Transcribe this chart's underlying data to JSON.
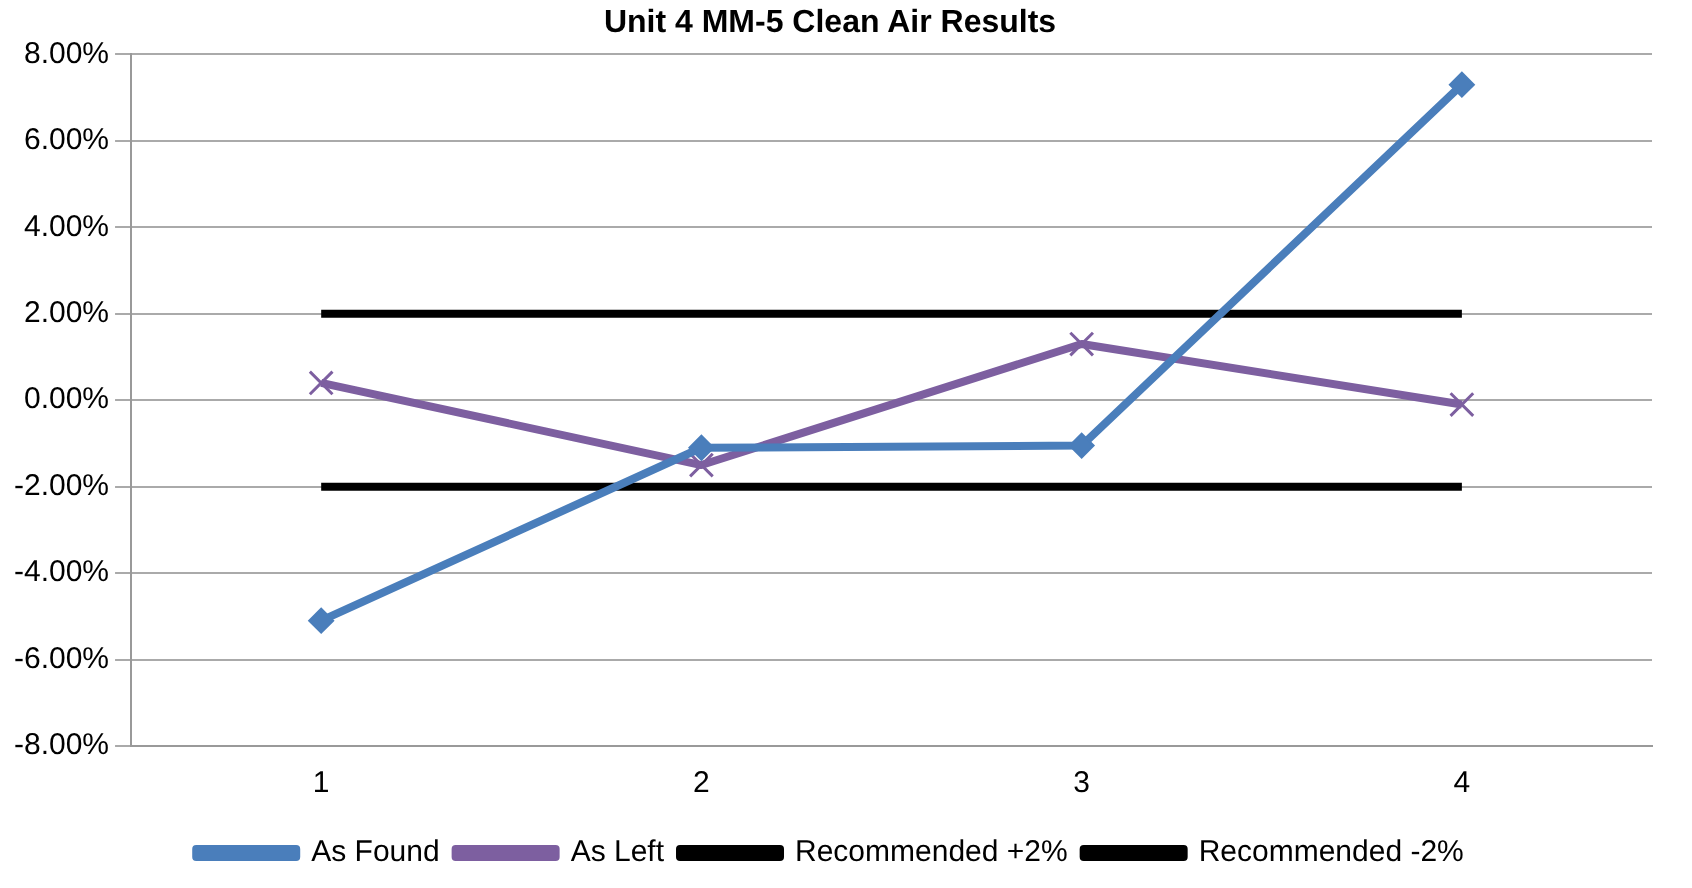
{
  "chart_data": {
    "type": "line",
    "title": "Unit 4 MM-5 Clean Air Results",
    "categories": [
      "1",
      "2",
      "3",
      "4"
    ],
    "series": [
      {
        "name": "As Found",
        "color": "#4a7ebb",
        "marker": "diamond",
        "values": [
          -5.1,
          -1.1,
          -1.05,
          7.3
        ]
      },
      {
        "name": "As Left",
        "color": "#7d5fa0",
        "marker": "cross",
        "values": [
          0.4,
          -1.5,
          1.3,
          -0.1
        ]
      },
      {
        "name": "Recommended +2%",
        "color": "#000000",
        "marker": "none",
        "values": [
          2,
          2,
          2,
          2
        ]
      },
      {
        "name": "Recommended -2%",
        "color": "#000000",
        "marker": "none",
        "values": [
          -2,
          -2,
          -2,
          -2
        ]
      }
    ],
    "ylim": [
      -8,
      8
    ],
    "yticks": [
      {
        "value": -8,
        "label": "-8.00%"
      },
      {
        "value": -6,
        "label": "-6.00%"
      },
      {
        "value": -4,
        "label": "-4.00%"
      },
      {
        "value": -2,
        "label": "-2.00%"
      },
      {
        "value": 0,
        "label": "0.00%"
      },
      {
        "value": 2,
        "label": "2.00%"
      },
      {
        "value": 4,
        "label": "4.00%"
      },
      {
        "value": 6,
        "label": "6.00%"
      },
      {
        "value": 8,
        "label": "8.00%"
      }
    ],
    "grid": "y",
    "legend": "bottom"
  }
}
